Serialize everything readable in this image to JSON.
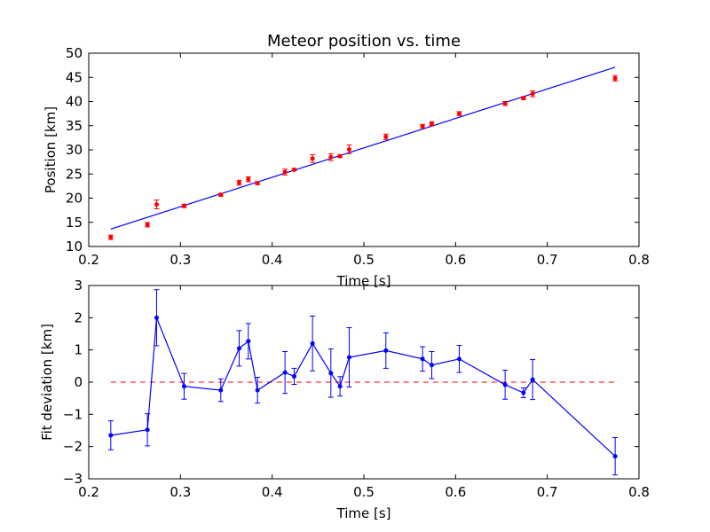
{
  "colors": {
    "points": "#ff0000",
    "fit": "#0000ff",
    "zero_line": "#ff0000",
    "axes": "#000000"
  },
  "chart_data": [
    {
      "type": "scatter",
      "title": "Meteor position vs. time",
      "xlabel": "Time [s]",
      "ylabel": "Position [km]",
      "xlim": [
        0.2,
        0.8
      ],
      "ylim": [
        10,
        50
      ],
      "xticks": [
        "0.2",
        "0.3",
        "0.4",
        "0.5",
        "0.6",
        "0.7",
        "0.8"
      ],
      "yticks": [
        "10",
        "15",
        "20",
        "25",
        "30",
        "35",
        "40",
        "45",
        "50"
      ],
      "grid": false,
      "series": [
        {
          "marker": "red points with error bars",
          "x": [
            0.224,
            0.264,
            0.274,
            0.304,
            0.344,
            0.364,
            0.374,
            0.384,
            0.414,
            0.424,
            0.444,
            0.464,
            0.474,
            0.484,
            0.524,
            0.564,
            0.574,
            0.604,
            0.654,
            0.674,
            0.684,
            0.774
          ],
          "y": [
            11.9,
            14.5,
            18.7,
            18.4,
            20.7,
            23.2,
            23.9,
            23.1,
            25.4,
            25.9,
            28.2,
            28.5,
            28.7,
            30.1,
            32.7,
            34.9,
            35.4,
            37.5,
            39.6,
            40.7,
            41.6,
            44.8
          ],
          "yerr": [
            0.45,
            0.45,
            0.9,
            0.35,
            0.3,
            0.5,
            0.5,
            0.3,
            0.6,
            0.2,
            0.8,
            0.7,
            0.3,
            0.9,
            0.55,
            0.35,
            0.4,
            0.4,
            0.4,
            0.3,
            0.6,
            0.55
          ]
        },
        {
          "marker": "blue linear fit line",
          "x": [
            0.224,
            0.774
          ],
          "y": [
            13.6,
            47.1
          ]
        }
      ]
    },
    {
      "type": "line",
      "xlabel": "Time [s]",
      "ylabel": "Fit deviation [km]",
      "xlim": [
        0.2,
        0.8
      ],
      "ylim": [
        -3,
        3
      ],
      "xticks": [
        "0.2",
        "0.3",
        "0.4",
        "0.5",
        "0.6",
        "0.7",
        "0.8"
      ],
      "yticks": [
        "−3",
        "−2",
        "−1",
        "0",
        "1",
        "2",
        "3"
      ],
      "grid": false,
      "zero_line": {
        "y": 0,
        "style": "dashed"
      },
      "series": [
        {
          "marker": "blue line with points and error bars",
          "x": [
            0.224,
            0.264,
            0.274,
            0.304,
            0.344,
            0.364,
            0.374,
            0.384,
            0.414,
            0.424,
            0.444,
            0.464,
            0.474,
            0.484,
            0.524,
            0.564,
            0.574,
            0.604,
            0.654,
            0.674,
            0.684,
            0.774
          ],
          "y": [
            -1.65,
            -1.48,
            2.0,
            -0.13,
            -0.25,
            1.05,
            1.27,
            -0.25,
            0.3,
            0.18,
            1.2,
            0.28,
            -0.13,
            0.77,
            0.98,
            0.72,
            0.53,
            0.72,
            -0.08,
            -0.33,
            0.08,
            -2.3
          ],
          "yerr": [
            0.45,
            0.5,
            0.87,
            0.4,
            0.35,
            0.55,
            0.55,
            0.4,
            0.65,
            0.25,
            0.85,
            0.75,
            0.3,
            0.92,
            0.55,
            0.38,
            0.42,
            0.42,
            0.45,
            0.15,
            0.62,
            0.58
          ]
        }
      ]
    }
  ]
}
